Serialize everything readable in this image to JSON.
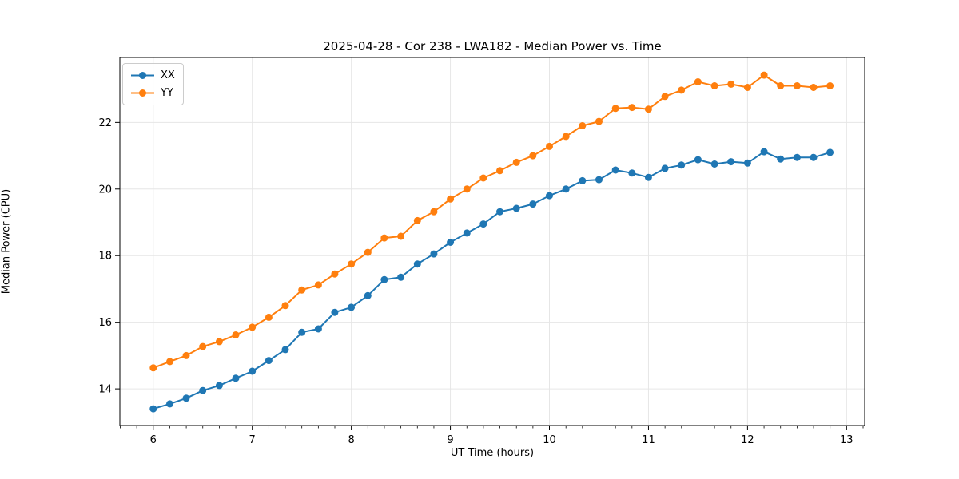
{
  "chart_data": {
    "type": "line",
    "title": "2025-04-28 - Cor 238 - LWA182 - Median Power vs. Time",
    "xlabel": "UT Time (hours)",
    "ylabel": "Median Power (CPU)",
    "xlim": [
      5.663,
      13.183
    ],
    "ylim": [
      12.9,
      23.95
    ],
    "xticks": [
      6,
      7,
      8,
      9,
      10,
      11,
      12,
      13
    ],
    "yticks": [
      14,
      16,
      18,
      20,
      22
    ],
    "minor_xtick_step": 0.16667,
    "grid": true,
    "legend_position": "upper-left",
    "marker": "circle",
    "x": [
      6.0,
      6.167,
      6.333,
      6.5,
      6.667,
      6.833,
      7.0,
      7.167,
      7.333,
      7.5,
      7.667,
      7.833,
      8.0,
      8.167,
      8.333,
      8.5,
      8.667,
      8.833,
      9.0,
      9.167,
      9.333,
      9.5,
      9.667,
      9.833,
      10.0,
      10.167,
      10.333,
      10.5,
      10.667,
      10.833,
      11.0,
      11.167,
      11.333,
      11.5,
      11.667,
      11.833,
      12.0,
      12.167,
      12.333,
      12.5,
      12.667,
      12.833
    ],
    "series": [
      {
        "name": "XX",
        "color": "#1f77b4",
        "values": [
          13.4,
          13.55,
          13.72,
          13.95,
          14.1,
          14.32,
          14.53,
          14.85,
          15.18,
          15.7,
          15.8,
          16.3,
          16.45,
          16.8,
          17.28,
          17.35,
          17.75,
          18.05,
          18.4,
          18.68,
          18.95,
          19.32,
          19.42,
          19.55,
          19.8,
          20.0,
          20.25,
          20.28,
          20.57,
          20.48,
          20.35,
          20.62,
          20.72,
          20.88,
          20.75,
          20.82,
          20.78,
          21.12,
          20.9,
          20.95,
          20.95,
          21.1
        ]
      },
      {
        "name": "YY",
        "color": "#ff7f0e",
        "values": [
          14.63,
          14.82,
          15.0,
          15.27,
          15.42,
          15.62,
          15.85,
          16.15,
          16.5,
          16.97,
          17.12,
          17.45,
          17.75,
          18.1,
          18.53,
          18.58,
          19.05,
          19.32,
          19.7,
          20.0,
          20.33,
          20.55,
          20.8,
          21.0,
          21.28,
          21.58,
          21.9,
          22.03,
          22.42,
          22.45,
          22.4,
          22.78,
          22.97,
          23.22,
          23.1,
          23.15,
          23.05,
          23.42,
          23.1,
          23.1,
          23.05,
          23.1
        ]
      }
    ],
    "colors": {
      "grid": "#e6e6e6",
      "spine": "#000000",
      "background": "#ffffff",
      "legend_border": "#cccccc"
    }
  }
}
